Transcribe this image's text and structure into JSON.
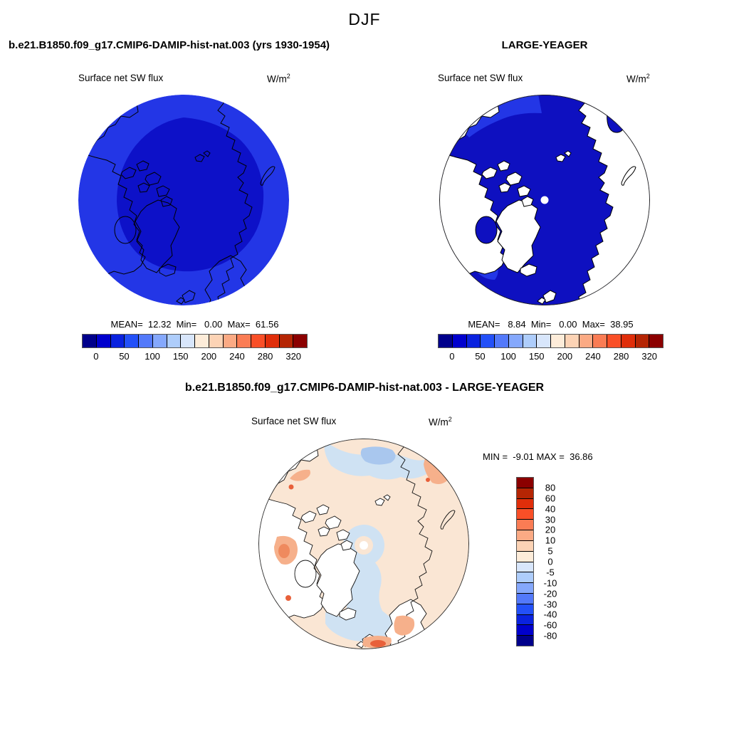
{
  "figure": {
    "season_title": "DJF",
    "model_title": "b.e21.B1850.f09_g17.CMIP6-DAMIP-hist-nat.003 (yrs 1930-1954)",
    "obs_title": "LARGE-YEAGER",
    "diff_title": "b.e21.B1850.f09_g17.CMIP6-DAMIP-hist-nat.003 - LARGE-YEAGER",
    "model_field_label": "Surface net SW flux",
    "obs_field_label": "Surface net SW flux",
    "diff_field_label": "Surface net SW flux",
    "units_base": "W/m",
    "units_exponent": "2",
    "model_stats": "MEAN=  12.32  Min=   0.00  Max=  61.56",
    "obs_stats": "MEAN=   8.84  Min=   0.00  Max=  38.95",
    "diff_stats": "MIN =  -9.01 MAX =  36.86"
  },
  "colorbar": {
    "orientation": "horizontal",
    "colors": [
      "#00008b",
      "#0000cd",
      "#0a22df",
      "#2350f8",
      "#5379fa",
      "#85a8fc",
      "#aecdfb",
      "#d8e6fb",
      "#fdecd9",
      "#fcd3b5",
      "#fbaa84",
      "#fa7c54",
      "#f94f27",
      "#e02e0a",
      "#b52504",
      "#8b0000"
    ],
    "tick_labels": [
      "0",
      "50",
      "100",
      "150",
      "200",
      "240",
      "280",
      "320"
    ],
    "tick_positions": [
      1,
      3,
      5,
      7,
      9,
      11,
      13,
      15
    ]
  },
  "diff_colorbar": {
    "orientation": "vertical",
    "colors": [
      "#8b0000",
      "#b52504",
      "#e02e0a",
      "#f94f27",
      "#fa7c54",
      "#fbaa84",
      "#fcd3b5",
      "#fdecd9",
      "#d8e6fb",
      "#aecdfb",
      "#85a8fc",
      "#5379fa",
      "#2350f8",
      "#0a22df",
      "#0000cd",
      "#00008b"
    ],
    "tick_labels": [
      "80",
      "60",
      "40",
      "30",
      "20",
      "10",
      "5",
      "0",
      "-5",
      "-10",
      "-20",
      "-30",
      "-40",
      "-60",
      "-80"
    ],
    "tick_positions": [
      1,
      2,
      3,
      4,
      5,
      6,
      7,
      8,
      9,
      10,
      11,
      12,
      13,
      14,
      15
    ]
  },
  "map_colors": {
    "model_inner": "#0d11c8",
    "model_rim": "#2336e6",
    "obs_ocean": "#0e10c0",
    "obs_bright": "#2336e6",
    "land_white": "#ffffff",
    "diff_background_peach": "#fae6d4",
    "diff_light_blue": "#cfe2f3",
    "diff_medium_blue": "#a9c7ee",
    "diff_salmon": "#f6b08b",
    "diff_orange_core": "#ef8a5e",
    "diff_orange_red": "#e8603a"
  },
  "chart_data": [
    {
      "type": "heatmap",
      "subtype": "north-polar-stereographic-map",
      "panel": "model",
      "title": "b.e21.B1850.f09_g17.CMIP6-DAMIP-hist-nat.003 (yrs 1930-1954)",
      "season": "DJF",
      "field": "Surface net SW flux",
      "units": "W/m2",
      "stats": {
        "mean": 12.32,
        "min": 0.0,
        "max": 61.56
      },
      "colorbar_ticks": [
        0,
        50,
        100,
        150,
        200,
        240,
        280,
        320
      ],
      "colorbar_segments": 16,
      "legend_position": "bottom",
      "description": "Arctic polar disc almost entirely dark blue (values ~0-50 W/m2); brighter blue annulus near the rim, darker blue interior; black coastlines overlaid."
    },
    {
      "type": "heatmap",
      "subtype": "north-polar-stereographic-map",
      "panel": "observations",
      "title": "LARGE-YEAGER",
      "season": "DJF",
      "field": "Surface net SW flux",
      "units": "W/m2",
      "stats": {
        "mean": 8.84,
        "min": 0.0,
        "max": 38.95
      },
      "colorbar_ticks": [
        0,
        50,
        100,
        150,
        200,
        240,
        280,
        320
      ],
      "colorbar_segments": 16,
      "legend_position": "bottom",
      "description": "Ocean-only data: dark blue ocean (~0-50 W/m2) with brighter blue near top rim, land masses blank white with black coastlines, small white hole at the pole."
    },
    {
      "type": "heatmap",
      "subtype": "north-polar-stereographic-map",
      "panel": "difference (model - observations)",
      "title": "b.e21.B1850.f09_g17.CMIP6-DAMIP-hist-nat.003 - LARGE-YEAGER",
      "season": "DJF",
      "field": "Surface net SW flux",
      "units": "W/m2",
      "stats": {
        "min": -9.01,
        "max": 36.86
      },
      "colorbar_ticks": [
        80,
        60,
        40,
        30,
        20,
        10,
        5,
        0,
        -5,
        -10,
        -20,
        -30,
        -40,
        -60,
        -80
      ],
      "colorbar_segments": 16,
      "legend_position": "right",
      "description": "Mostly pale peach (0 to +5) with light blue patches (-5 to 0) at top, pole ring, mid-Atlantic band and Davis Strait; salmon/orange positive patches (+10 to +30) near Bering Strait, top-right rim and Norwegian coast; land blank white over North America, Greenland and Scandinavia."
    }
  ]
}
